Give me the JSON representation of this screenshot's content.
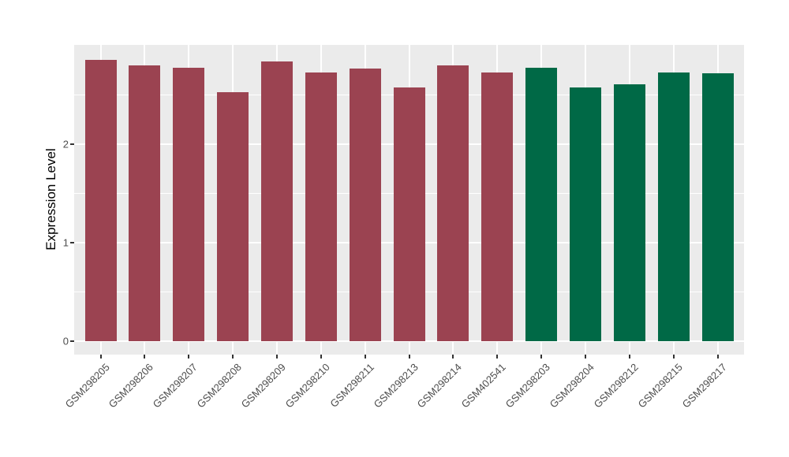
{
  "chart_data": {
    "type": "bar",
    "title": "",
    "xlabel": "",
    "ylabel": "Expression Level",
    "categories": [
      "GSM298205",
      "GSM298206",
      "GSM298207",
      "GSM298208",
      "GSM298209",
      "GSM298210",
      "GSM298211",
      "GSM298213",
      "GSM298214",
      "GSM402541",
      "GSM298203",
      "GSM298204",
      "GSM298212",
      "GSM298215",
      "GSM298217"
    ],
    "values": [
      2.86,
      2.8,
      2.78,
      2.53,
      2.84,
      2.73,
      2.77,
      2.58,
      2.8,
      2.73,
      2.78,
      2.58,
      2.61,
      2.73,
      2.72
    ],
    "bar_colors": [
      "#9B4351",
      "#9B4351",
      "#9B4351",
      "#9B4351",
      "#9B4351",
      "#9B4351",
      "#9B4351",
      "#9B4351",
      "#9B4351",
      "#9B4351",
      "#006946",
      "#006946",
      "#006946",
      "#006946",
      "#006946"
    ],
    "group_colors": {
      "maroon": "#9B4351",
      "green": "#006946"
    },
    "yticks": [
      0,
      1,
      2
    ],
    "ytick_labels": [
      "0",
      "1",
      "2"
    ],
    "minor_yticks": [
      0.5,
      1.5,
      2.5
    ],
    "ylim": [
      -0.14,
      3.01
    ],
    "legend_position": "none",
    "grid": true,
    "panel_bg": "#EBEBEB",
    "grid_color": "#FFFFFF",
    "axis_text_color": "#4D4D4D",
    "tick_color": "#333333"
  }
}
